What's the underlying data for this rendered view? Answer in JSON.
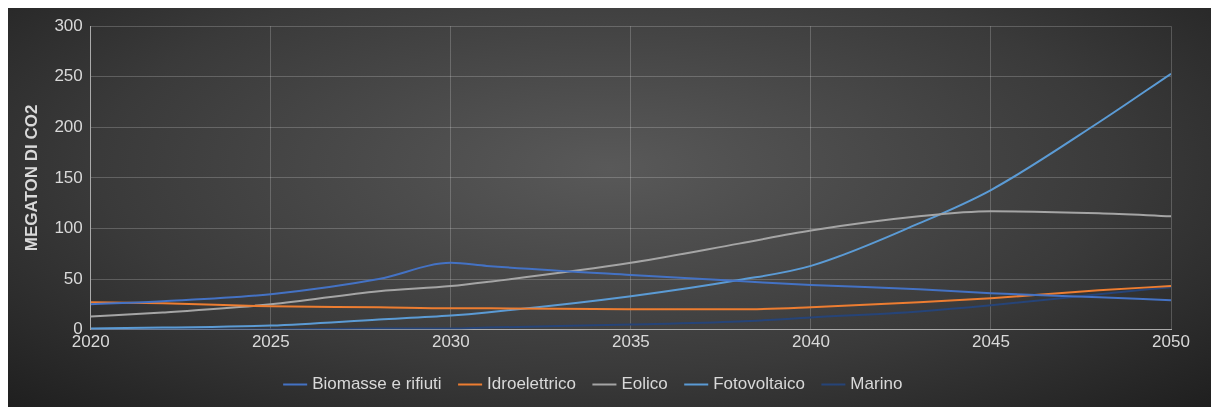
{
  "chart_data": {
    "type": "line",
    "ylabel": "MEGATON DI CO2",
    "x": [
      2020,
      2022,
      2025,
      2028,
      2030,
      2031,
      2035,
      2038,
      2040,
      2043,
      2045,
      2048,
      2050
    ],
    "series": [
      {
        "name": "Biomasse e rifiuti",
        "color": "#4472c4",
        "values": [
          25,
          28,
          35,
          50,
          66,
          63,
          54,
          48,
          44,
          40,
          36,
          32,
          29
        ]
      },
      {
        "name": "Idroelettrico",
        "color": "#ed7d31",
        "values": [
          27,
          26,
          23,
          22,
          21,
          21,
          20,
          20,
          22,
          27,
          31,
          39,
          43
        ]
      },
      {
        "name": "Eolico",
        "color": "#a5a5a5",
        "values": [
          13,
          17,
          25,
          38,
          43,
          47,
          66,
          85,
          98,
          112,
          117,
          115,
          112
        ]
      },
      {
        "name": "Fotovoltaico",
        "color": "#5b9bd5",
        "values": [
          1,
          2,
          4,
          10,
          14,
          17,
          33,
          49,
          63,
          105,
          138,
          205,
          253
        ]
      },
      {
        "name": "Marino",
        "color": "#264478",
        "values": [
          0,
          0,
          0,
          1,
          1,
          2,
          5,
          8,
          12,
          18,
          24,
          35,
          42
        ]
      }
    ],
    "xlim": [
      2020,
      2050
    ],
    "xticks": [
      2020,
      2025,
      2030,
      2035,
      2040,
      2045,
      2050
    ],
    "ylim": [
      0,
      300
    ],
    "yticks": [
      0,
      50,
      100,
      150,
      200,
      250,
      300
    ],
    "grid": true,
    "legend": "bottom",
    "marker": "none",
    "line_style": "solid"
  }
}
